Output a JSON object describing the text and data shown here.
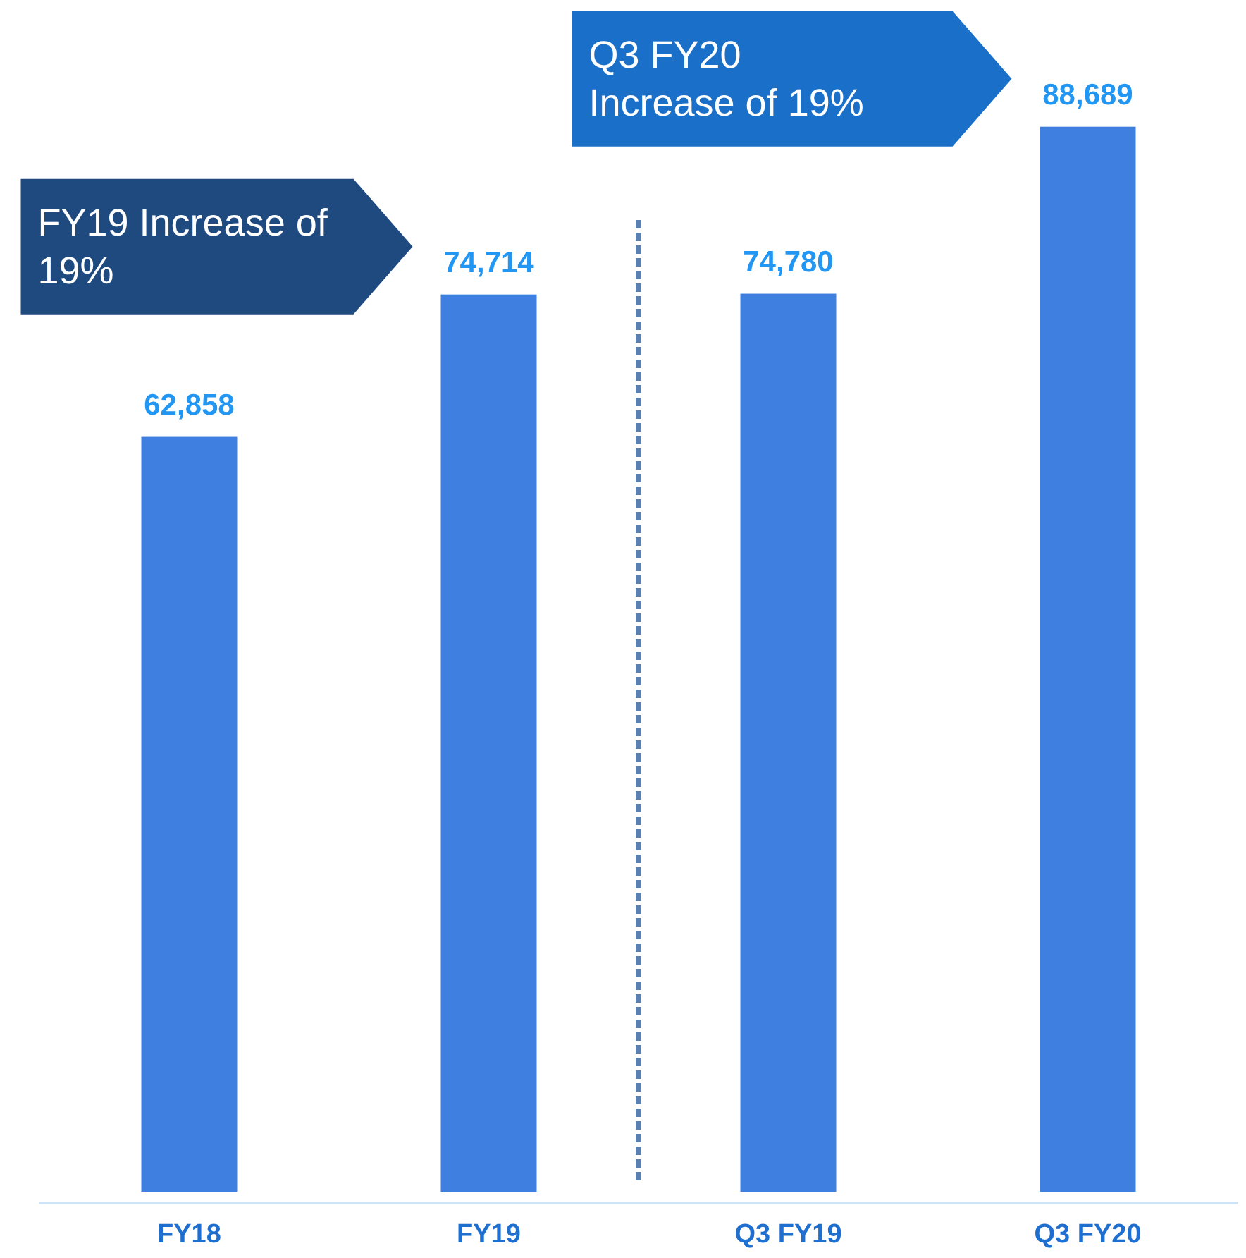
{
  "chart_data": {
    "type": "bar",
    "categories": [
      "FY18",
      "FY19",
      "Q3 FY19",
      "Q3 FY20"
    ],
    "values": [
      62858,
      74714,
      74780,
      88689
    ],
    "value_labels": [
      "62,858",
      "74,714",
      "74,780",
      "88,689"
    ],
    "color": "#3f7fdf",
    "annotations": [
      "FY19 Increase of 19%",
      "Q3 FY20 Increase of 19%"
    ]
  }
}
